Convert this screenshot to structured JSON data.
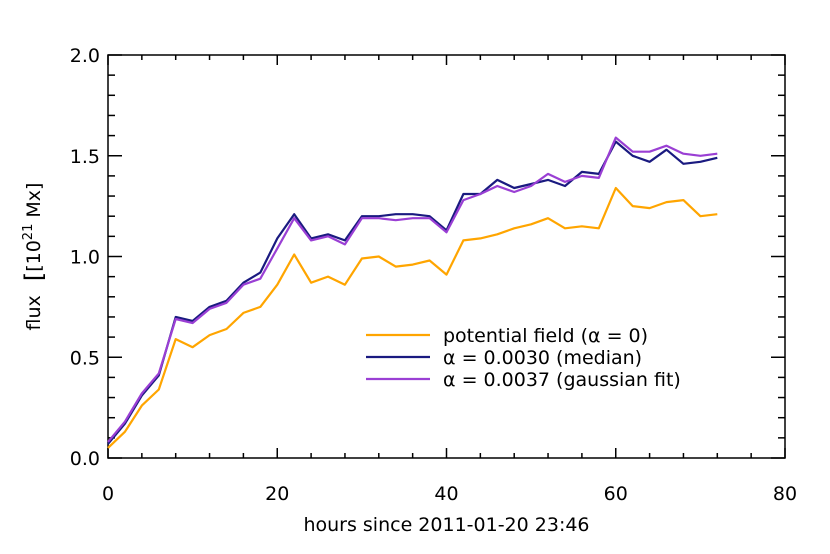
{
  "chart_data": {
    "type": "line",
    "xlabel": "hours since 2011-01-20 23:46",
    "ylabel_prefix": "flux",
    "ylabel_unit": "[10",
    "ylabel_exp": "21",
    "ylabel_suffix": " Mx]",
    "xlim": [
      0,
      80
    ],
    "ylim": [
      0,
      2.0
    ],
    "x_ticks": [
      0,
      20,
      40,
      60,
      80
    ],
    "x_tick_labels": [
      "0",
      "20",
      "40",
      "60",
      "80"
    ],
    "y_ticks": [
      0.0,
      0.5,
      1.0,
      1.5,
      2.0
    ],
    "y_tick_labels": [
      "0.0",
      "0.5",
      "1.0",
      "1.5",
      "2.0"
    ],
    "x_minor_step": 4,
    "y_minor_step": 0.1,
    "grid": false,
    "legend_position": "lower-right",
    "x": [
      0,
      2,
      4,
      6,
      8,
      10,
      12,
      14,
      16,
      18,
      20,
      22,
      24,
      26,
      28,
      30,
      32,
      34,
      36,
      38,
      40,
      42,
      44,
      46,
      48,
      50,
      52,
      54,
      56,
      58,
      60,
      62,
      64,
      66,
      68,
      70,
      72
    ],
    "series": [
      {
        "name": "potential field (α = 0)",
        "color": "#FFA500",
        "values": [
          0.05,
          0.13,
          0.26,
          0.34,
          0.59,
          0.55,
          0.61,
          0.64,
          0.72,
          0.75,
          0.86,
          1.01,
          0.87,
          0.9,
          0.86,
          0.99,
          1.0,
          0.95,
          0.96,
          0.98,
          0.91,
          1.08,
          1.09,
          1.11,
          1.14,
          1.16,
          1.19,
          1.14,
          1.15,
          1.14,
          1.34,
          1.25,
          1.24,
          1.27,
          1.28,
          1.2,
          1.21
        ]
      },
      {
        "name": "α = 0.0030 (median)",
        "color": "#1a1a80",
        "values": [
          0.07,
          0.17,
          0.31,
          0.41,
          0.7,
          0.68,
          0.75,
          0.78,
          0.87,
          0.92,
          1.09,
          1.21,
          1.09,
          1.11,
          1.08,
          1.2,
          1.2,
          1.21,
          1.21,
          1.2,
          1.13,
          1.31,
          1.31,
          1.38,
          1.34,
          1.36,
          1.38,
          1.35,
          1.42,
          1.41,
          1.57,
          1.5,
          1.47,
          1.53,
          1.46,
          1.47,
          1.49
        ]
      },
      {
        "name": "α = 0.0037 (gaussian fit)",
        "color": "#9a3fd4",
        "values": [
          0.08,
          0.18,
          0.32,
          0.42,
          0.69,
          0.67,
          0.74,
          0.77,
          0.86,
          0.89,
          1.04,
          1.19,
          1.08,
          1.1,
          1.06,
          1.19,
          1.19,
          1.18,
          1.19,
          1.19,
          1.12,
          1.28,
          1.31,
          1.35,
          1.32,
          1.35,
          1.41,
          1.37,
          1.4,
          1.39,
          1.59,
          1.52,
          1.52,
          1.55,
          1.51,
          1.5,
          1.51
        ]
      }
    ]
  }
}
